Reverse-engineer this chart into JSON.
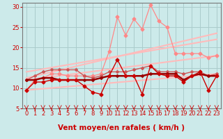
{
  "xlabel": "Vent moyen/en rafales ( km/h )",
  "bg_color": "#cceaea",
  "grid_color": "#aacccc",
  "axis_color": "#777777",
  "xlim": [
    -0.5,
    23.5
  ],
  "ylim": [
    5,
    31
  ],
  "yticks": [
    5,
    10,
    15,
    20,
    25,
    30
  ],
  "xticks": [
    0,
    1,
    2,
    3,
    4,
    5,
    6,
    7,
    8,
    9,
    10,
    11,
    12,
    13,
    14,
    15,
    16,
    17,
    18,
    19,
    20,
    21,
    22,
    23
  ],
  "trend1_x": [
    0,
    23
  ],
  "trend1_y": [
    9.5,
    13.5
  ],
  "trend1_color": "#ffbbbb",
  "trend1_lw": 1.5,
  "trend2_x": [
    0,
    23
  ],
  "trend2_y": [
    12.0,
    18.0
  ],
  "trend2_color": "#ffbbbb",
  "trend2_lw": 1.5,
  "trend3_x": [
    0,
    23
  ],
  "trend3_y": [
    12.5,
    23.5
  ],
  "trend3_color": "#ffbbbb",
  "trend3_lw": 1.5,
  "trend4_x": [
    0,
    23
  ],
  "trend4_y": [
    14.0,
    22.0
  ],
  "trend4_color": "#ffbbbb",
  "trend4_lw": 1.5,
  "line_volatile_x": [
    0,
    1,
    2,
    3,
    4,
    5,
    6,
    7,
    8,
    9,
    10,
    11,
    12,
    13,
    14,
    15,
    16,
    17,
    18,
    19,
    20,
    21,
    22,
    23
  ],
  "line_volatile_y": [
    9.5,
    12.0,
    12.5,
    13.5,
    13.5,
    13.0,
    13.0,
    13.0,
    13.0,
    13.5,
    19.0,
    27.5,
    23.0,
    27.0,
    24.5,
    30.5,
    26.5,
    25.0,
    18.5,
    18.5,
    18.5,
    18.5,
    17.5,
    18.0
  ],
  "line_volatile_color": "#ff8888",
  "line_volatile_lw": 0.9,
  "line_volatile_ms": 2.5,
  "line_medium_x": [
    0,
    1,
    2,
    3,
    4,
    5,
    6,
    7,
    8,
    9,
    10,
    11,
    12,
    13,
    14,
    15,
    16,
    17,
    18,
    19,
    20,
    21,
    22,
    23
  ],
  "line_medium_y": [
    9.5,
    11.5,
    11.5,
    12.0,
    12.0,
    12.0,
    12.0,
    10.5,
    9.0,
    8.5,
    13.0,
    17.0,
    13.0,
    13.0,
    8.5,
    15.5,
    13.5,
    13.0,
    13.0,
    11.5,
    13.0,
    14.0,
    9.5,
    13.0
  ],
  "line_medium_color": "#cc0000",
  "line_medium_lw": 1.0,
  "line_medium_ms": 2.5,
  "line_flat1_x": [
    0,
    1,
    2,
    3,
    4,
    5,
    6,
    7,
    8,
    9,
    10,
    11,
    12,
    13,
    14,
    15,
    16,
    17,
    18,
    19,
    20,
    21,
    22,
    23
  ],
  "line_flat1_y": [
    12.0,
    12.0,
    12.5,
    12.5,
    12.0,
    12.0,
    12.0,
    12.0,
    12.0,
    12.5,
    13.0,
    13.0,
    13.0,
    13.0,
    13.0,
    13.5,
    13.5,
    13.5,
    13.5,
    12.0,
    13.0,
    13.5,
    13.0,
    13.0
  ],
  "line_flat1_color": "#990000",
  "line_flat1_lw": 1.8,
  "line_flat1_ms": 2.0,
  "line_flat2_x": [
    0,
    1,
    2,
    3,
    4,
    5,
    6,
    7,
    8,
    9,
    10,
    11,
    12,
    13,
    14,
    15,
    16,
    17,
    18,
    19,
    20,
    21,
    22,
    23
  ],
  "line_flat2_y": [
    12.0,
    13.0,
    14.0,
    14.5,
    14.5,
    14.5,
    14.5,
    13.0,
    12.5,
    13.0,
    14.0,
    14.0,
    14.0,
    14.5,
    15.0,
    15.5,
    14.0,
    14.0,
    14.0,
    13.5,
    14.0,
    14.0,
    13.0,
    13.5
  ],
  "line_flat2_color": "#cc5555",
  "line_flat2_lw": 1.0,
  "line_flat2_ms": 2.0,
  "xlabel_color": "#cc0000",
  "xlabel_fontsize": 7.5,
  "tick_fontsize": 6,
  "tick_color": "#cc0000",
  "arrow_color": "#cc0000"
}
